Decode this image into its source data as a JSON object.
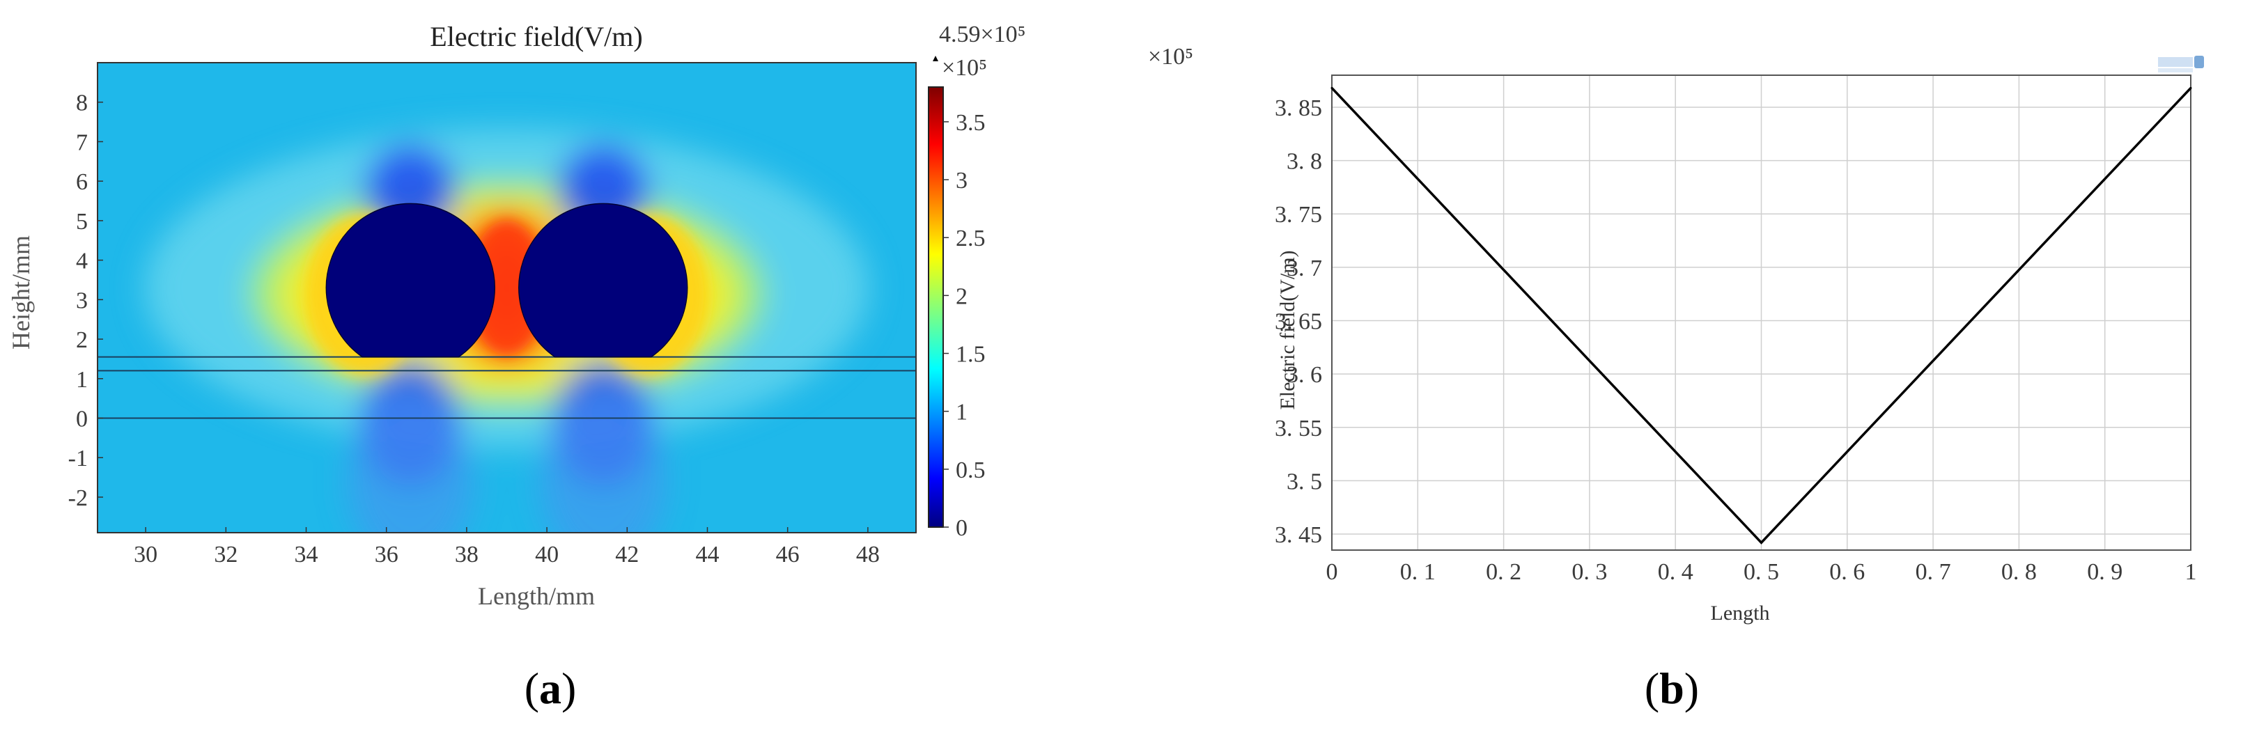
{
  "chart_data": [
    {
      "type": "heatmap",
      "panel_label": "(a)",
      "panel_label_letter": "a",
      "title": "Electric field(V/m)",
      "xlabel": "Length/mm",
      "ylabel": "Height/mm",
      "xlim": [
        28.8,
        49.2
      ],
      "ylim": [
        -2.9,
        9.0
      ],
      "xticks": [
        30,
        32,
        34,
        36,
        38,
        40,
        42,
        44,
        46,
        48
      ],
      "yticks": [
        -2,
        -1,
        0,
        1,
        2,
        3,
        4,
        5,
        6,
        7,
        8
      ],
      "colorbar": {
        "max_label": "4.59×10⁵",
        "multiplier": "×10⁵",
        "range": [
          0,
          3.8
        ],
        "ticks": [
          "0",
          "0.5",
          "1",
          "1.5",
          "2",
          "2.5",
          "3",
          "3.5"
        ],
        "tick_values": [
          0,
          0.5,
          1,
          1.5,
          2,
          2.5,
          3,
          3.5
        ],
        "colormap": "jet"
      },
      "conductors": [
        {
          "cx": 36.6,
          "cy": 3.3,
          "r": 2.1
        },
        {
          "cx": 41.4,
          "cy": 3.3,
          "r": 2.1
        }
      ],
      "layer_lines_y": [
        0,
        1.2,
        1.55
      ],
      "background_color": "#1fb8ea",
      "conductor_color": "#00007a"
    },
    {
      "type": "line",
      "panel_label": "(b)",
      "panel_label_letter": "b",
      "title": "",
      "xlabel": "Length",
      "ylabel": "Electric field(V/m)",
      "y_multiplier": "×10⁵",
      "xlim": [
        0,
        1
      ],
      "ylim": [
        3.435,
        3.88
      ],
      "xticks": [
        "0",
        "0. 1",
        "0. 2",
        "0. 3",
        "0. 4",
        "0. 5",
        "0. 6",
        "0. 7",
        "0. 8",
        "0. 9",
        "1"
      ],
      "xtick_values": [
        0,
        0.1,
        0.2,
        0.3,
        0.4,
        0.5,
        0.6,
        0.7,
        0.8,
        0.9,
        1.0
      ],
      "yticks": [
        "3. 45",
        "3. 5",
        "3. 55",
        "3. 6",
        "3. 65",
        "3. 7",
        "3. 75",
        "3. 8",
        "3. 85"
      ],
      "ytick_values": [
        3.45,
        3.5,
        3.55,
        3.6,
        3.65,
        3.7,
        3.75,
        3.8,
        3.85
      ],
      "grid": true,
      "series": [
        {
          "x": [
            0,
            0.5,
            1.0
          ],
          "y": [
            3.868,
            3.442,
            3.868
          ],
          "color": "#000000"
        }
      ]
    }
  ]
}
